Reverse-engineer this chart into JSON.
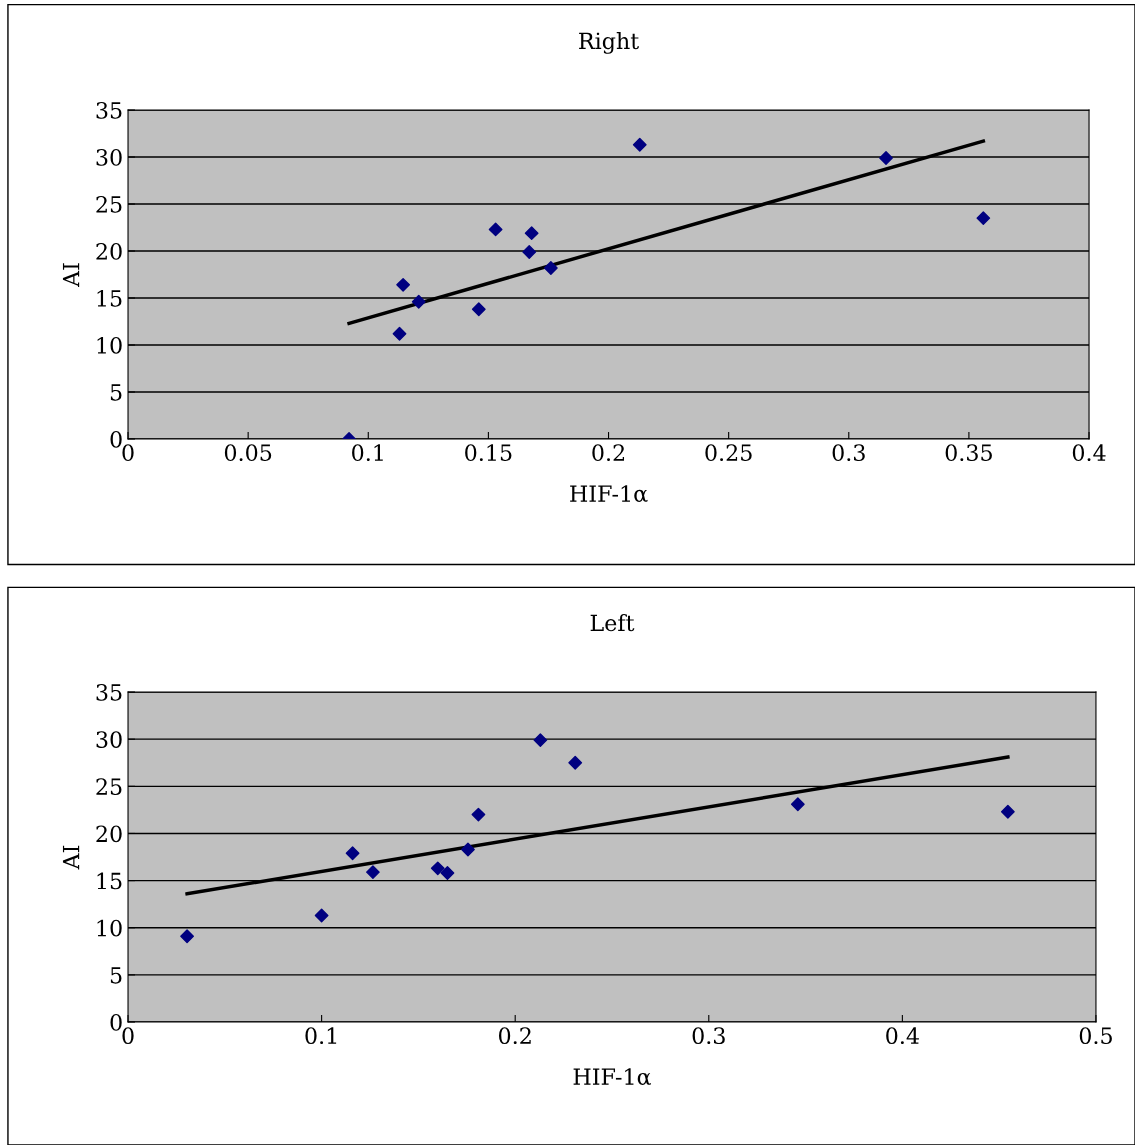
{
  "chart_data": [
    {
      "type": "scatter",
      "title": "Right",
      "xlabel": "HIF-1α",
      "ylabel": "AI",
      "xlim": [
        0,
        0.4
      ],
      "xticks": [
        0,
        0.05,
        0.1,
        0.15,
        0.2,
        0.25,
        0.3,
        0.35,
        0.4
      ],
      "ylim": [
        0,
        35
      ],
      "yticks": [
        0,
        5,
        10,
        15,
        20,
        25,
        30,
        35
      ],
      "grid": "y",
      "legend": false,
      "marker": "diamond",
      "series": [
        {
          "color": "#000080",
          "x": [
            0.092,
            0.113,
            0.1145,
            0.121,
            0.146,
            0.153,
            0.167,
            0.168,
            0.176,
            0.213,
            0.3155,
            0.356
          ],
          "values": [
            0,
            11.2,
            16.4,
            14.6,
            13.8,
            22.3,
            19.9,
            21.9,
            18.2,
            31.3,
            29.9,
            23.5
          ]
        },
        {
          "type": "line",
          "color": "#000000",
          "marker": "none",
          "line_style": "solid",
          "x": [
            0.092,
            0.356
          ],
          "values": [
            12.3,
            31.7
          ]
        }
      ]
    },
    {
      "type": "scatter",
      "title": "Left",
      "xlabel": "HIF-1α",
      "ylabel": "AI",
      "xlim": [
        0,
        0.5
      ],
      "xticks": [
        0,
        0.1,
        0.2,
        0.3,
        0.4,
        0.5
      ],
      "ylim": [
        0,
        35
      ],
      "yticks": [
        0,
        5,
        10,
        15,
        20,
        25,
        30,
        35
      ],
      "grid": "y",
      "legend": false,
      "marker": "diamond",
      "series": [
        {
          "color": "#000080",
          "x": [
            0.0305,
            0.1,
            0.116,
            0.1265,
            0.16,
            0.165,
            0.1756,
            0.181,
            0.213,
            0.231,
            0.346,
            0.4545
          ],
          "values": [
            9.1,
            11.3,
            17.9,
            15.9,
            16.3,
            15.8,
            18.3,
            22.0,
            29.9,
            27.5,
            23.1,
            22.3
          ]
        },
        {
          "type": "line",
          "color": "#000000",
          "marker": "none",
          "line_style": "solid",
          "x": [
            0.0305,
            0.4545
          ],
          "values": [
            13.6,
            28.1
          ]
        }
      ]
    }
  ]
}
